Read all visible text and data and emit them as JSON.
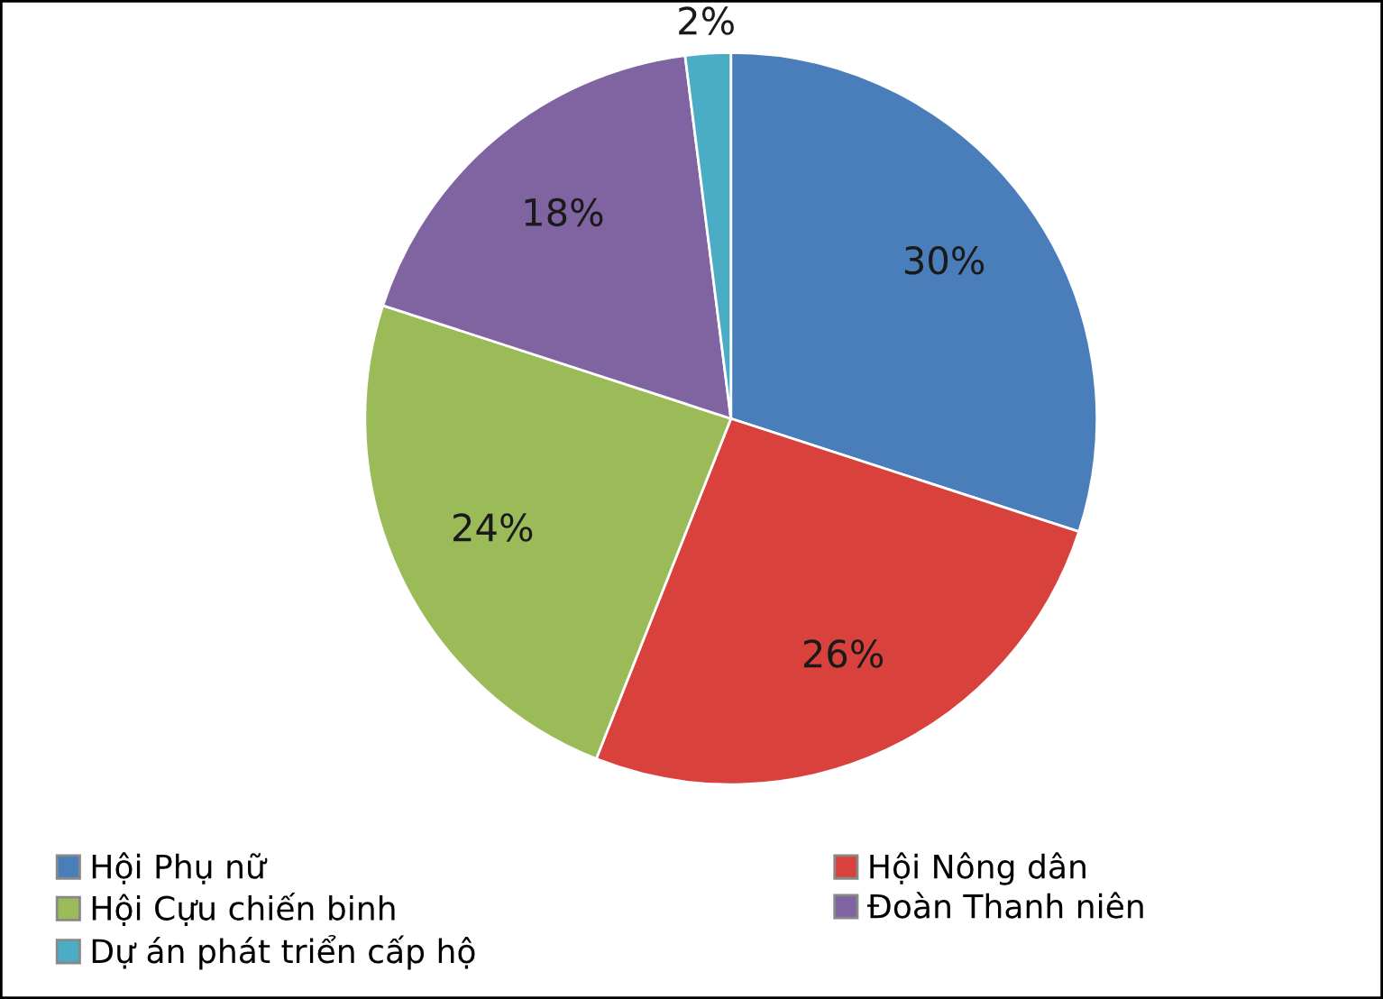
{
  "chart_data": {
    "type": "pie",
    "categories": [
      "Hội Phụ nữ",
      "Hội Nông dân",
      "Hội Cựu chiến binh",
      "Đoàn Thanh niên",
      "Dự án phát triển cấp hộ"
    ],
    "values": [
      30,
      26,
      24,
      18,
      2
    ],
    "value_labels": [
      "30%",
      "26%",
      "24%",
      "18%",
      "2%"
    ],
    "colors": [
      "#4a7ebb",
      "#d9413c",
      "#9bbb59",
      "#8064a2",
      "#4bacc6"
    ],
    "legend": "bottom"
  }
}
